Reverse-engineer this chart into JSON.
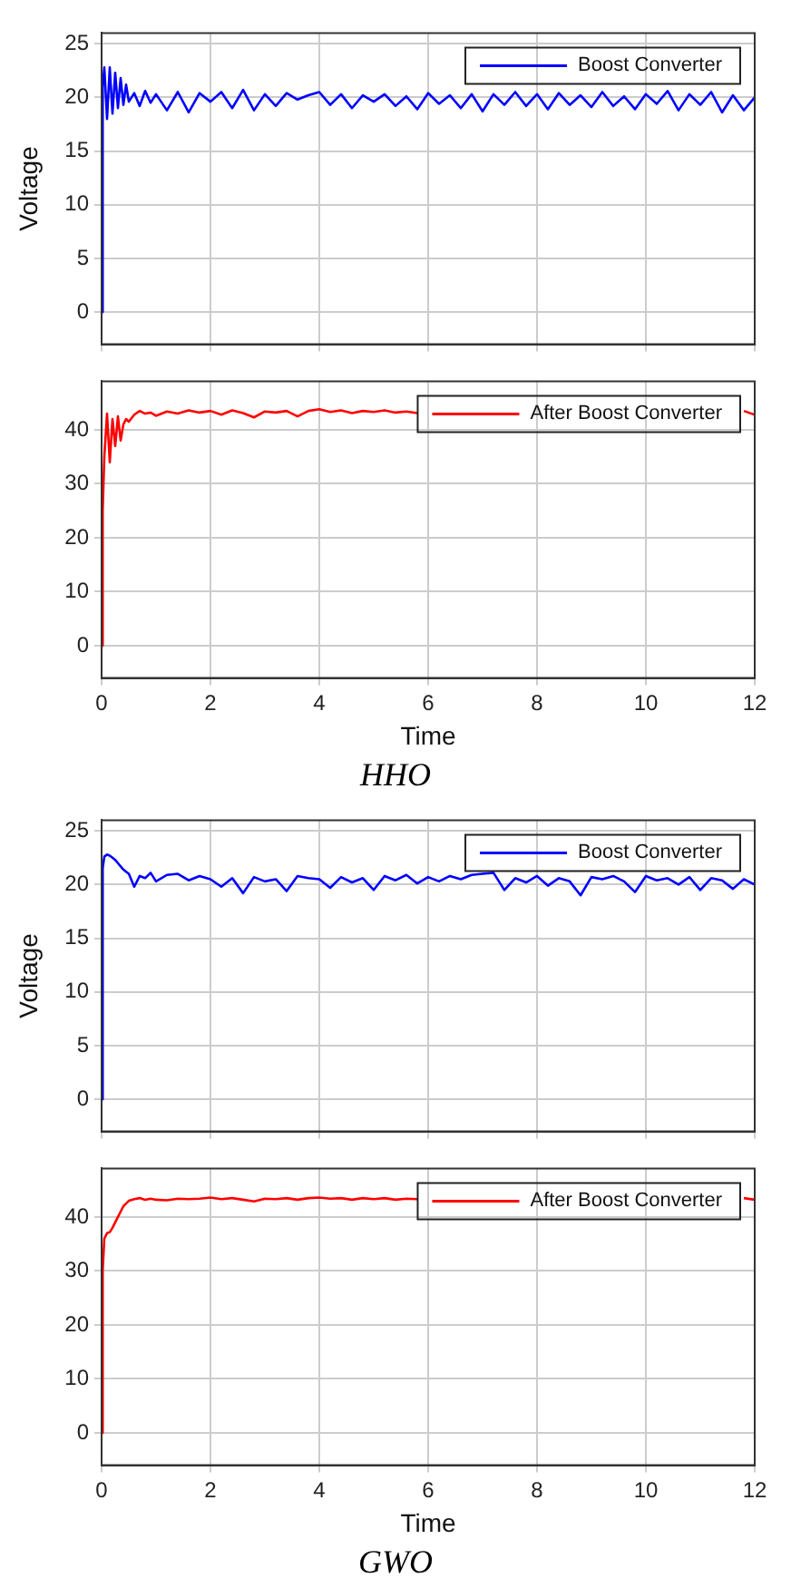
{
  "chart_data": [
    {
      "type": "line",
      "ylabel": "Voltage",
      "xlim": [
        0,
        12
      ],
      "xticks": [
        0,
        2,
        4,
        6,
        8,
        10,
        12
      ],
      "ylim": [
        -3,
        26
      ],
      "yticks": [
        0,
        5,
        10,
        15,
        20,
        25
      ],
      "grid": true,
      "legend": "top right",
      "tick_labels": "y",
      "x": [
        0,
        0.02,
        0.05,
        0.1,
        0.15,
        0.2,
        0.25,
        0.3,
        0.35,
        0.4,
        0.45,
        0.5,
        0.6,
        0.7,
        0.8,
        0.9,
        1.0,
        1.2,
        1.4,
        1.6,
        1.8,
        2.0,
        2.2,
        2.4,
        2.6,
        2.8,
        3.0,
        3.2,
        3.4,
        3.6,
        3.8,
        4.0,
        4.2,
        4.4,
        4.6,
        4.8,
        5.0,
        5.2,
        5.4,
        5.6,
        5.8,
        6.0,
        6.2,
        6.4,
        6.6,
        6.8,
        7.0,
        7.2,
        7.4,
        7.6,
        7.8,
        8.0,
        8.2,
        8.4,
        8.6,
        8.8,
        9.0,
        9.2,
        9.4,
        9.6,
        9.8,
        10.0,
        10.2,
        10.4,
        10.6,
        10.8,
        11.0,
        11.2,
        11.4,
        11.6,
        11.8,
        12.0
      ],
      "series": [
        {
          "name": "Boost Converter",
          "color": "#0000ff",
          "values": [
            0,
            21,
            22.8,
            18,
            22.8,
            18.5,
            22.3,
            19,
            21.8,
            19.3,
            21.2,
            19.6,
            20.4,
            19.2,
            20.6,
            19.5,
            20.3,
            18.8,
            20.5,
            18.6,
            20.4,
            19.6,
            20.5,
            19.0,
            20.7,
            18.8,
            20.3,
            19.2,
            20.4,
            19.8,
            20.2,
            20.5,
            19.3,
            20.3,
            19.0,
            20.2,
            19.6,
            20.3,
            19.2,
            20.1,
            18.9,
            20.4,
            19.4,
            20.2,
            19.0,
            20.3,
            18.7,
            20.3,
            19.3,
            20.5,
            19.2,
            20.3,
            18.9,
            20.4,
            19.3,
            20.2,
            19.1,
            20.5,
            19.2,
            20.1,
            18.9,
            20.3,
            19.4,
            20.6,
            18.8,
            20.3,
            19.3,
            20.5,
            18.6,
            20.2,
            18.8,
            20.0
          ]
        }
      ]
    },
    {
      "type": "line",
      "xlabel": "Time",
      "xlim": [
        0,
        12
      ],
      "xticks": [
        0,
        2,
        4,
        6,
        8,
        10,
        12
      ],
      "ylim": [
        -6,
        49
      ],
      "yticks": [
        0,
        10,
        20,
        30,
        40
      ],
      "grid": true,
      "legend": "top right",
      "annotations": [
        "HHO"
      ],
      "x": [
        0,
        0.02,
        0.05,
        0.1,
        0.15,
        0.2,
        0.25,
        0.3,
        0.35,
        0.4,
        0.45,
        0.5,
        0.6,
        0.7,
        0.8,
        0.9,
        1.0,
        1.2,
        1.4,
        1.6,
        1.8,
        2.0,
        2.2,
        2.4,
        2.6,
        2.8,
        3.0,
        3.2,
        3.4,
        3.6,
        3.8,
        4.0,
        4.2,
        4.4,
        4.6,
        4.8,
        5.0,
        5.2,
        5.4,
        5.6,
        5.8,
        6.0,
        6.2,
        6.4,
        6.6,
        6.8,
        7.0,
        7.2,
        7.4,
        7.6,
        7.8,
        8.0,
        8.2,
        8.4,
        8.6,
        8.8,
        9.0,
        9.2,
        9.4,
        9.6,
        9.8,
        10.0,
        10.2,
        10.4,
        10.6,
        10.8,
        11.0,
        11.2,
        11.4,
        11.6,
        11.8,
        12.0
      ],
      "series": [
        {
          "name": "After Boost Converter",
          "color": "#ff0000",
          "values": [
            0,
            25,
            35,
            43,
            34,
            42,
            37,
            42.5,
            38,
            41,
            42,
            41.5,
            42.8,
            43.5,
            43,
            43.2,
            42.6,
            43.4,
            43,
            43.6,
            43.2,
            43.5,
            42.8,
            43.6,
            43.1,
            42.3,
            43.4,
            43.2,
            43.5,
            42.5,
            43.5,
            43.8,
            43.3,
            43.6,
            43.1,
            43.5,
            43.3,
            43.6,
            43.2,
            43.4,
            43.1,
            null,
            null,
            null,
            null,
            null,
            null,
            null,
            null,
            null,
            null,
            null,
            null,
            null,
            null,
            null,
            null,
            null,
            null,
            null,
            null,
            null,
            null,
            null,
            null,
            null,
            null,
            null,
            null,
            null,
            43.5,
            42.8
          ]
        }
      ]
    },
    {
      "type": "line",
      "ylabel": "Voltage",
      "xlim": [
        0,
        12
      ],
      "xticks": [
        0,
        2,
        4,
        6,
        8,
        10,
        12
      ],
      "ylim": [
        -3,
        26
      ],
      "yticks": [
        0,
        5,
        10,
        15,
        20,
        25
      ],
      "grid": true,
      "legend": "top right",
      "tick_labels": "y",
      "x": [
        0,
        0.02,
        0.05,
        0.1,
        0.15,
        0.2,
        0.25,
        0.3,
        0.35,
        0.4,
        0.45,
        0.5,
        0.6,
        0.7,
        0.8,
        0.9,
        1.0,
        1.2,
        1.4,
        1.6,
        1.8,
        2.0,
        2.2,
        2.4,
        2.6,
        2.8,
        3.0,
        3.2,
        3.4,
        3.6,
        3.8,
        4.0,
        4.2,
        4.4,
        4.6,
        4.8,
        5.0,
        5.2,
        5.4,
        5.6,
        5.8,
        6.0,
        6.2,
        6.4,
        6.6,
        6.8,
        7.0,
        7.2,
        7.4,
        7.6,
        7.8,
        8.0,
        8.2,
        8.4,
        8.6,
        8.8,
        9.0,
        9.2,
        9.4,
        9.6,
        9.8,
        10.0,
        10.2,
        10.4,
        10.6,
        10.8,
        11.0,
        11.2,
        11.4,
        11.6,
        11.8,
        12.0
      ],
      "series": [
        {
          "name": "Boost Converter",
          "color": "#0000ff",
          "values": [
            0,
            21.5,
            22.6,
            22.8,
            22.7,
            22.5,
            22.3,
            22.0,
            21.7,
            21.4,
            21.2,
            21.0,
            19.8,
            20.8,
            20.6,
            21.1,
            20.3,
            20.9,
            21.0,
            20.4,
            20.8,
            20.5,
            19.8,
            20.6,
            19.2,
            20.7,
            20.3,
            20.5,
            19.4,
            20.8,
            20.6,
            20.5,
            19.7,
            20.7,
            20.2,
            20.6,
            19.5,
            20.8,
            20.4,
            20.9,
            20.1,
            20.7,
            20.3,
            20.8,
            20.5,
            20.9,
            21.0,
            21.1,
            19.5,
            20.6,
            20.2,
            20.8,
            19.9,
            20.6,
            20.3,
            19.0,
            20.7,
            20.5,
            20.8,
            20.3,
            19.3,
            20.8,
            20.4,
            20.6,
            20.0,
            20.7,
            19.5,
            20.6,
            20.4,
            19.6,
            20.5,
            20.0
          ]
        }
      ]
    },
    {
      "type": "line",
      "xlabel": "Time",
      "xlim": [
        0,
        12
      ],
      "xticks": [
        0,
        2,
        4,
        6,
        8,
        10,
        12
      ],
      "ylim": [
        -6,
        49
      ],
      "yticks": [
        0,
        10,
        20,
        30,
        40
      ],
      "grid": true,
      "legend": "top right",
      "annotations": [
        "GWO"
      ],
      "x": [
        0,
        0.02,
        0.05,
        0.1,
        0.15,
        0.2,
        0.25,
        0.3,
        0.35,
        0.4,
        0.45,
        0.5,
        0.6,
        0.7,
        0.8,
        0.9,
        1.0,
        1.2,
        1.4,
        1.6,
        1.8,
        2.0,
        2.2,
        2.4,
        2.6,
        2.8,
        3.0,
        3.2,
        3.4,
        3.6,
        3.8,
        4.0,
        4.2,
        4.4,
        4.6,
        4.8,
        5.0,
        5.2,
        5.4,
        5.6,
        5.8,
        6.0,
        6.2,
        6.4,
        6.6,
        6.8,
        7.0,
        7.2,
        7.4,
        7.6,
        7.8,
        8.0,
        8.2,
        8.4,
        8.6,
        8.8,
        9.0,
        9.2,
        9.4,
        9.6,
        9.8,
        10.0,
        10.2,
        10.4,
        10.6,
        10.8,
        11.0,
        11.2,
        11.4,
        11.6,
        11.8,
        12.0
      ],
      "series": [
        {
          "name": "After Boost Converter",
          "color": "#ff0000",
          "values": [
            0,
            30,
            36,
            37,
            37.2,
            38,
            39,
            40,
            41,
            42,
            42.5,
            43,
            43.3,
            43.5,
            43.2,
            43.4,
            43.2,
            43.1,
            43.4,
            43.3,
            43.4,
            43.6,
            43.3,
            43.5,
            43.2,
            42.9,
            43.4,
            43.3,
            43.5,
            43.2,
            43.5,
            43.6,
            43.4,
            43.5,
            43.2,
            43.5,
            43.3,
            43.5,
            43.2,
            43.4,
            43.3,
            null,
            null,
            null,
            null,
            null,
            null,
            null,
            null,
            null,
            null,
            null,
            null,
            null,
            null,
            null,
            null,
            null,
            null,
            null,
            null,
            null,
            null,
            null,
            null,
            null,
            null,
            null,
            null,
            null,
            43.5,
            43.2
          ]
        }
      ]
    }
  ]
}
